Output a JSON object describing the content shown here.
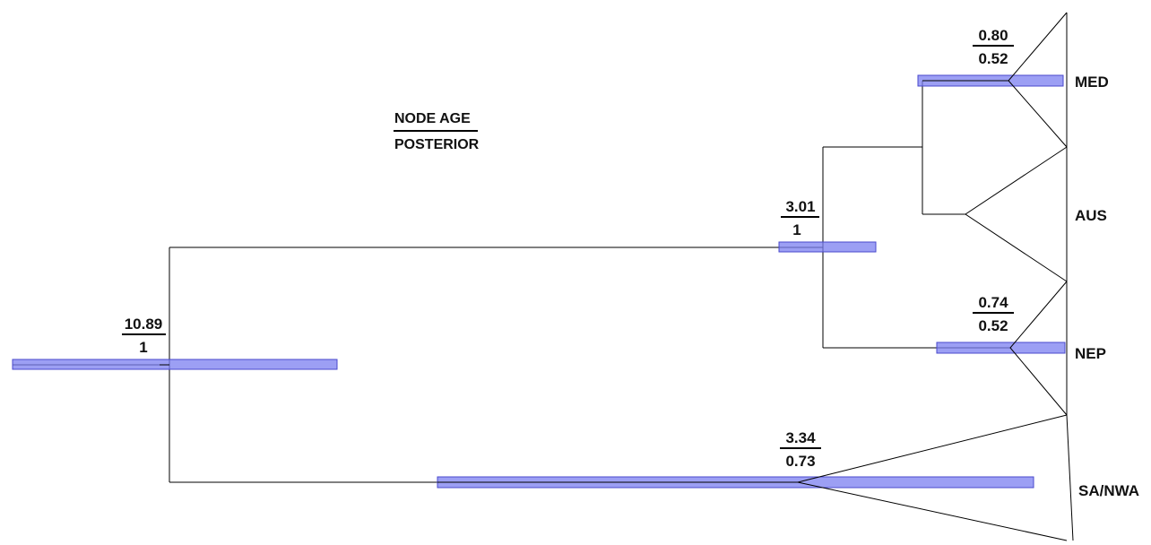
{
  "legend": {
    "top": "NODE AGE",
    "bottom": "POSTERIOR"
  },
  "colors": {
    "hpd_bar": "#7b7ff0",
    "line": "#000000",
    "text": "#111111"
  },
  "nodes": [
    {
      "id": "root",
      "age": "10.89",
      "posterior": "1"
    },
    {
      "id": "upper",
      "age": "3.01",
      "posterior": "1"
    },
    {
      "id": "med",
      "age": "0.80",
      "posterior": "0.52"
    },
    {
      "id": "nep",
      "age": "0.74",
      "posterior": "0.52"
    },
    {
      "id": "sa-nwa",
      "age": "3.34",
      "posterior": "0.73"
    }
  ],
  "clades": [
    {
      "id": "med",
      "label": "MED"
    },
    {
      "id": "aus",
      "label": "AUS"
    },
    {
      "id": "nep",
      "label": "NEP"
    },
    {
      "id": "sa-nwa",
      "label": "SA/NWA"
    }
  ]
}
